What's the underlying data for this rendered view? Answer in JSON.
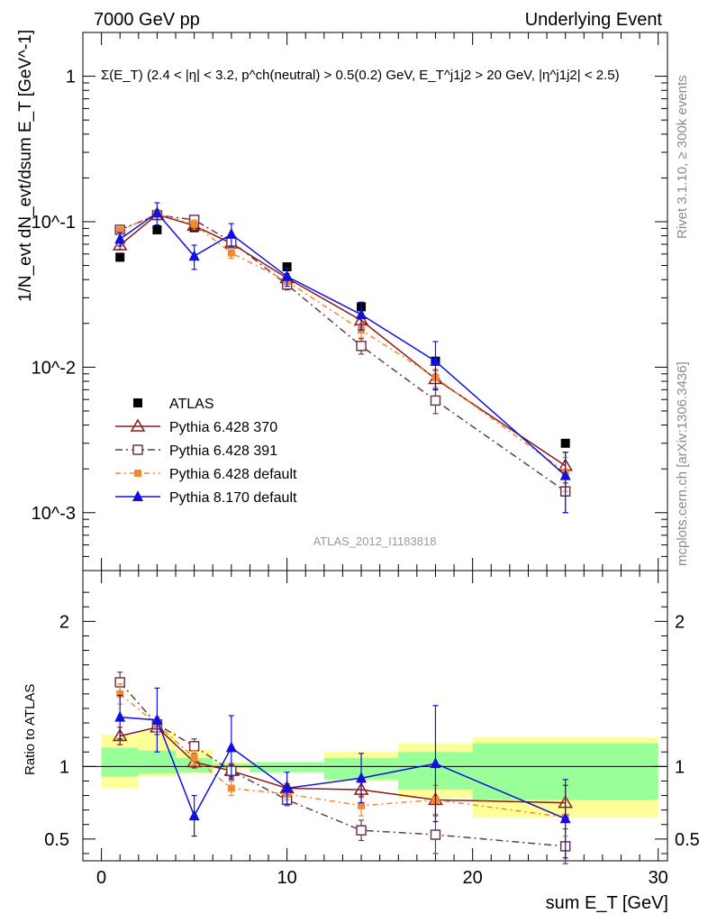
{
  "header": {
    "left": "7000 GeV pp",
    "right": "Underlying Event"
  },
  "side": {
    "rivet": "Rivet 3.1.10, ≥ 300k events",
    "mcplots": "mcplots.cern.ch [arXiv:1306.3436]"
  },
  "watermark": "ATLAS_2012_I1183818",
  "colors": {
    "atlas": "#000000",
    "p370": "#8b1a1a",
    "p391": "#6b3a4a",
    "pdef": "#f5882f",
    "p8": "#1010e0",
    "band_outer": "#ffff99",
    "band_inner": "#99ff99"
  },
  "chart_data": [
    {
      "type": "line",
      "title": "Σ(E_T) (2.4 < |η| < 3.2, p^ch(neutral) > 0.5(0.2) GeV, E_T^j1j2 > 20 GeV, |η^j1j2| < 2.5)",
      "xlabel": "sum E_T [GeV]",
      "ylabel": "1/N_evt dN_evt/dsum E_T [GeV^-1]",
      "yscale": "log",
      "xlim": [
        -1,
        30.5
      ],
      "ylim": [
        0.0004,
        2
      ],
      "ytick_labels": [
        "10^-3",
        "10^-2",
        "10^-1",
        "1"
      ],
      "legend": "inside lower-left",
      "x": [
        1,
        3,
        5,
        7,
        10,
        14,
        18,
        25
      ],
      "series": [
        {
          "name": "ATLAS",
          "values": [
            0.057,
            0.088,
            0.091,
            0.073,
            0.049,
            0.026,
            0.011,
            0.003
          ],
          "err": [
            0,
            0,
            0,
            0,
            0,
            0,
            0,
            0
          ],
          "marker": "square"
        },
        {
          "name": "Pythia 6.428 370",
          "values": [
            0.069,
            0.112,
            0.094,
            0.071,
            0.041,
            0.021,
            0.0083,
            0.0021
          ],
          "err": [
            0.005,
            0.008,
            0.007,
            0.005,
            0.003,
            0.002,
            0.0012,
            0.0005
          ],
          "marker": "open-triangle"
        },
        {
          "name": "Pythia 6.428 391",
          "values": [
            0.088,
            0.111,
            0.103,
            0.073,
            0.037,
            0.014,
            0.0059,
            0.0014
          ],
          "err": [
            0.005,
            0.008,
            0.007,
            0.005,
            0.003,
            0.0017,
            0.0011,
            0.0004
          ],
          "marker": "open-square"
        },
        {
          "name": "Pythia 6.428 default",
          "values": [
            0.087,
            0.113,
            0.096,
            0.061,
            0.039,
            0.018,
            0.0085,
            0.0019
          ],
          "err": [
            0.005,
            0.008,
            0.007,
            0.005,
            0.003,
            0.002,
            0.0012,
            0.0005
          ],
          "marker": "filled-square"
        },
        {
          "name": "Pythia 8.170 default",
          "values": [
            0.076,
            0.115,
            0.058,
            0.082,
            0.042,
            0.023,
            0.011,
            0.0018
          ],
          "err": [
            0.008,
            0.02,
            0.011,
            0.015,
            0.006,
            0.005,
            0.004,
            0.0008
          ],
          "marker": "filled-triangle"
        }
      ]
    },
    {
      "type": "line",
      "xlabel": "sum E_T [GeV]",
      "ylabel": "Ratio to ATLAS",
      "xlim": [
        -1,
        30.5
      ],
      "ylim": [
        0.35,
        2.35
      ],
      "ytick_labels": [
        "0.5",
        "1",
        "2"
      ],
      "xtick_labels": [
        "0",
        "10",
        "20",
        "30"
      ],
      "x": [
        1,
        3,
        5,
        7,
        10,
        14,
        18,
        25
      ],
      "bands": {
        "edges": [
          0,
          2,
          4,
          6,
          8,
          12,
          16,
          20,
          30
        ],
        "outer": [
          [
            0.85,
            1.22
          ],
          [
            0.93,
            1.24
          ],
          [
            0.95,
            1.12
          ],
          [
            0.98,
            1.03
          ],
          [
            0.98,
            1.03
          ],
          [
            0.9,
            1.1
          ],
          [
            0.78,
            1.16
          ],
          [
            0.65,
            1.2
          ],
          [
            0.43,
            1.27
          ]
        ],
        "inner": [
          [
            0.93,
            1.13
          ],
          [
            0.95,
            1.11
          ],
          [
            0.96,
            1.06
          ],
          [
            0.99,
            1.02
          ],
          [
            0.96,
            1.03
          ],
          [
            0.91,
            1.06
          ],
          [
            0.84,
            1.1
          ],
          [
            0.77,
            1.16
          ],
          [
            0.77,
            1.16
          ]
        ]
      },
      "series": [
        {
          "name": "Pythia 6.428 370",
          "values": [
            1.21,
            1.27,
            1.03,
            0.97,
            0.85,
            0.84,
            0.77,
            0.75
          ],
          "err": [
            0.06,
            0.05,
            0.04,
            0.04,
            0.03,
            0.05,
            0.1,
            0.12
          ],
          "marker": "open-triangle"
        },
        {
          "name": "Pythia 6.428 391",
          "values": [
            1.58,
            1.29,
            1.14,
            0.97,
            0.77,
            0.56,
            0.53,
            0.45
          ],
          "err": [
            0.07,
            0.05,
            0.05,
            0.05,
            0.04,
            0.07,
            0.13,
            0.12
          ],
          "marker": "open-square"
        },
        {
          "name": "Pythia 6.428 default",
          "values": [
            1.5,
            1.29,
            1.06,
            0.85,
            0.81,
            0.73,
            0.77,
            0.65
          ],
          "err": [
            0.07,
            0.05,
            0.05,
            0.05,
            0.04,
            0.07,
            0.1,
            0.13
          ],
          "marker": "filled-square"
        },
        {
          "name": "Pythia 8.170 default",
          "values": [
            1.34,
            1.32,
            0.66,
            1.13,
            0.85,
            0.92,
            1.02,
            0.64
          ],
          "err": [
            0.15,
            0.22,
            0.14,
            0.22,
            0.11,
            0.17,
            0.4,
            0.27
          ],
          "marker": "filled-triangle"
        }
      ]
    }
  ]
}
